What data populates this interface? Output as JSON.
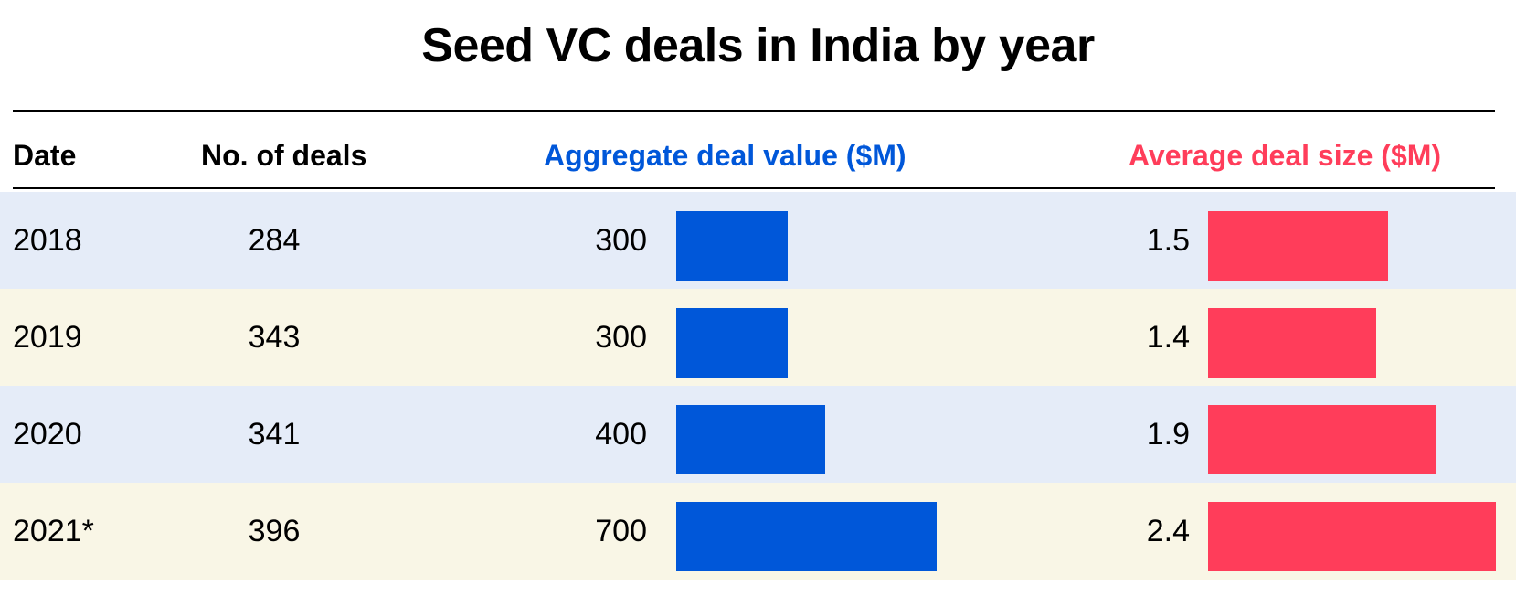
{
  "title": "Seed VC deals in India by year",
  "columns": {
    "date": "Date",
    "deals": "No. of deals",
    "aggregate": "Aggregate deal value ($M)",
    "average": "Average deal size ($M)"
  },
  "colors": {
    "aggregate": "#0057d9",
    "average": "#ff3d5a",
    "row_blue": "#e5ecf8",
    "row_cream": "#f9f6e6"
  },
  "chart_data": {
    "type": "table",
    "title": "Seed VC deals in India by year",
    "columns": [
      "Date",
      "No. of deals",
      "Aggregate deal value ($M)",
      "Average deal size ($M)"
    ],
    "rows": [
      {
        "date": "2018",
        "deals": "284",
        "aggregate": "300",
        "average": "1.5"
      },
      {
        "date": "2019",
        "deals": "343",
        "aggregate": "300",
        "average": "1.4"
      },
      {
        "date": "2020",
        "deals": "341",
        "aggregate": "400",
        "average": "1.9"
      },
      {
        "date": "2021*",
        "deals": "396",
        "aggregate": "700",
        "average": "2.4"
      }
    ],
    "series": [
      {
        "name": "Aggregate deal value ($M)",
        "values": [
          300,
          300,
          400,
          700
        ],
        "max": 700
      },
      {
        "name": "Average deal size ($M)",
        "values": [
          1.5,
          1.4,
          1.9,
          2.4
        ],
        "max": 2.4
      }
    ]
  }
}
